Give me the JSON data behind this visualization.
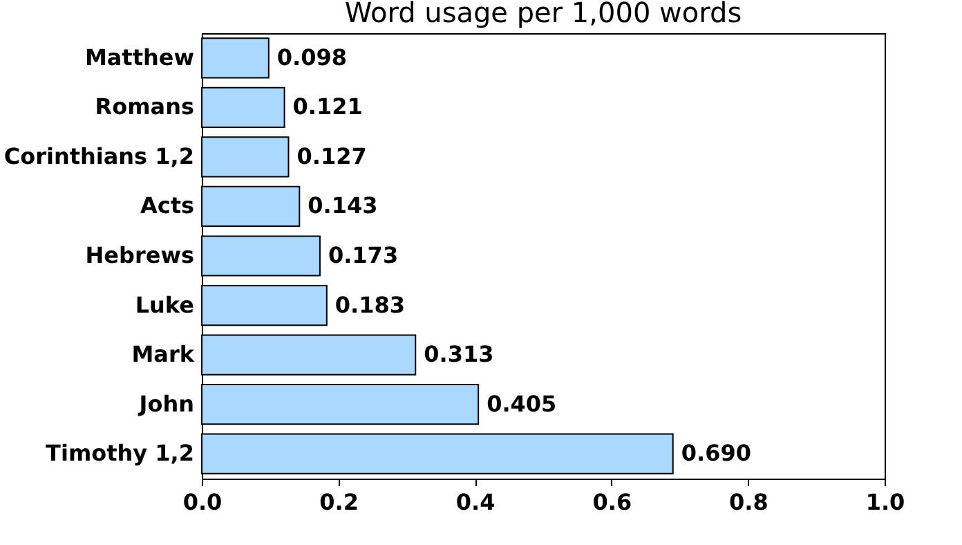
{
  "chart_data": {
    "type": "bar",
    "orientation": "horizontal",
    "title": "Word usage per 1,000 words",
    "categories": [
      "Matthew",
      "Romans",
      "Corinthians 1,2",
      "Acts",
      "Hebrews",
      "Luke",
      "Mark",
      "John",
      "Timothy 1,2"
    ],
    "values": [
      0.098,
      0.121,
      0.127,
      0.143,
      0.173,
      0.183,
      0.313,
      0.405,
      0.69
    ],
    "value_labels": [
      "0.098",
      "0.121",
      "0.127",
      "0.143",
      "0.173",
      "0.183",
      "0.313",
      "0.405",
      "0.690"
    ],
    "color": "#aad8ff",
    "xlim": [
      0,
      1
    ],
    "xticks": [
      {
        "value": 0,
        "label": "0.0"
      },
      {
        "value": 0.2,
        "label": "0.2"
      },
      {
        "value": 0.4,
        "label": "0.4"
      },
      {
        "value": 0.6,
        "label": "0.6"
      },
      {
        "value": 0.8,
        "label": "0.8"
      },
      {
        "value": 1,
        "label": "1.0"
      }
    ],
    "grid": false
  }
}
